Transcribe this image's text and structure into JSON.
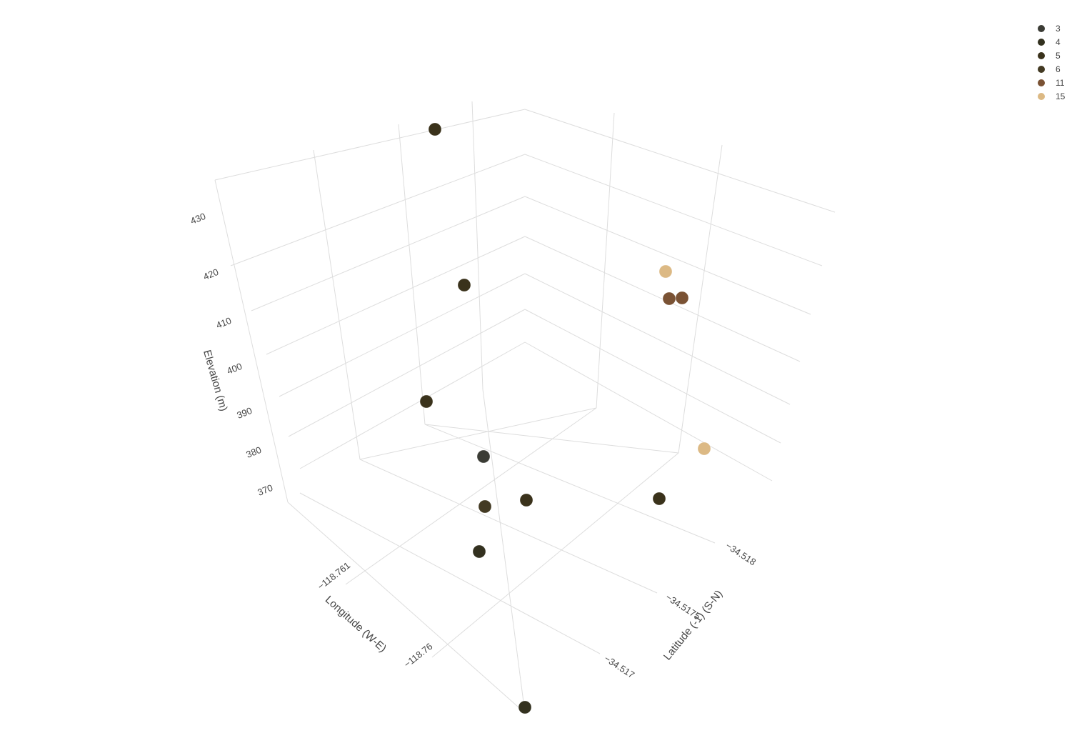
{
  "chart_data": {
    "type": "scatter3d",
    "axes": {
      "x": {
        "title": "Longitude (W-E)",
        "ticks": [
          "−118.761",
          "−118.76"
        ]
      },
      "y": {
        "title": "Latitude (-1) (S-N)",
        "ticks": [
          "−34.517",
          "−34.5175",
          "−34.518"
        ]
      },
      "z": {
        "title": "Elevation (m)",
        "ticks": [
          "370",
          "380",
          "390",
          "400",
          "410",
          "420",
          "430"
        ]
      }
    },
    "grid": true,
    "legend_position": "top-right",
    "series": [
      {
        "name": "3",
        "color": "#3b3c35",
        "points": [
          {
            "label": "3"
          }
        ]
      },
      {
        "name": "4",
        "color": "#33311f",
        "points": [
          {
            "label": "4"
          },
          {
            "label": "4"
          }
        ]
      },
      {
        "name": "5",
        "color": "#3a321b",
        "points": [
          {
            "label": "5"
          },
          {
            "label": "5"
          },
          {
            "label": "5"
          },
          {
            "label": "5"
          },
          {
            "label": "5"
          }
        ]
      },
      {
        "name": "6",
        "color": "#433a23",
        "points": [
          {
            "label": "6"
          },
          {
            "label": "6"
          }
        ]
      },
      {
        "name": "11",
        "color": "#7a5234",
        "points": [
          {
            "label": "11"
          },
          {
            "label": "11"
          }
        ]
      },
      {
        "name": "15",
        "color": "#dcb984",
        "points": [
          {
            "label": "15"
          },
          {
            "label": "15"
          }
        ]
      }
    ]
  }
}
